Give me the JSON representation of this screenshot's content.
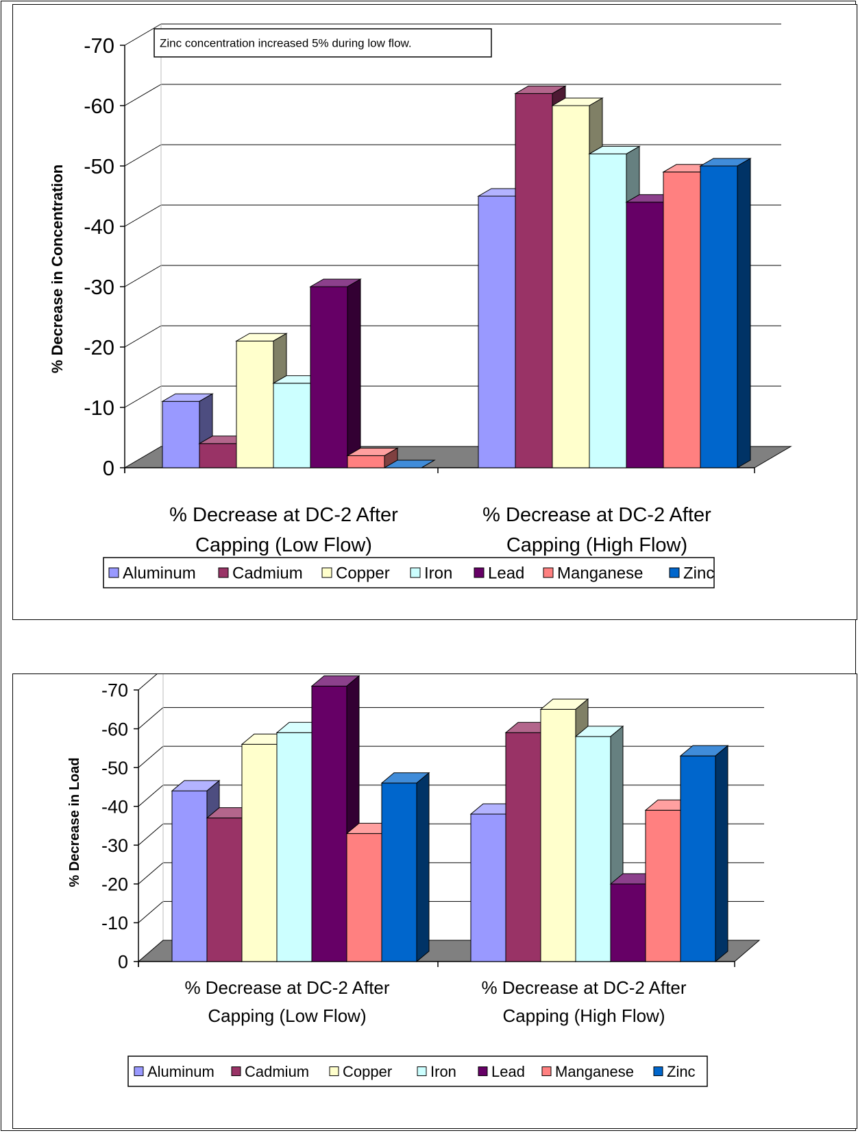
{
  "colors": {
    "Aluminum": "#9999ff",
    "Cadmium": "#993366",
    "Copper": "#ffffcc",
    "Iron": "#ccffff",
    "Lead": "#660066",
    "Manganese": "#ff8080",
    "Zinc": "#0066cc",
    "floor": "#808080",
    "gridline": "#000000"
  },
  "chart_data": [
    {
      "type": "bar",
      "style": "3d-clustered-column",
      "ylabel": "% Decrease in Concentration",
      "xlabel": "",
      "yticks": [
        "0",
        "-10",
        "-20",
        "-30",
        "-40",
        "-50",
        "-60",
        "-70"
      ],
      "ylim": [
        0,
        -70
      ],
      "grid": true,
      "legend_position": "bottom",
      "annotation": "Zinc concentration increased 5% during low flow.",
      "categories": [
        "% Decrease at DC-2 After Capping (Low Flow)",
        "% Decrease at DC-2 After Capping (High Flow)"
      ],
      "category_lines": [
        [
          "% Decrease at DC-2 After",
          "Capping (Low Flow)"
        ],
        [
          "% Decrease at DC-2 After",
          "Capping (High Flow)"
        ]
      ],
      "series": [
        {
          "name": "Aluminum",
          "values": [
            -11,
            -45
          ]
        },
        {
          "name": "Cadmium",
          "values": [
            -4,
            -62
          ]
        },
        {
          "name": "Copper",
          "values": [
            -21,
            -60
          ]
        },
        {
          "name": "Iron",
          "values": [
            -14,
            -52
          ]
        },
        {
          "name": "Lead",
          "values": [
            -30,
            -44
          ]
        },
        {
          "name": "Manganese",
          "values": [
            -2,
            -49
          ]
        },
        {
          "name": "Zinc",
          "values": [
            0,
            -50
          ]
        }
      ]
    },
    {
      "type": "bar",
      "style": "3d-clustered-column",
      "ylabel": "% Decrease in Load",
      "xlabel": "",
      "yticks": [
        "0",
        "-10",
        "-20",
        "-30",
        "-40",
        "-50",
        "-60",
        "-70"
      ],
      "ylim": [
        0,
        -70
      ],
      "grid": true,
      "legend_position": "bottom",
      "annotation": "",
      "categories": [
        "% Decrease at DC-2 After Capping (Low Flow)",
        "% Decrease at DC-2 After Capping (High Flow)"
      ],
      "category_lines": [
        [
          "% Decrease at DC-2 After",
          "Capping (Low Flow)"
        ],
        [
          "% Decrease at DC-2 After",
          "Capping (High Flow)"
        ]
      ],
      "series": [
        {
          "name": "Aluminum",
          "values": [
            -44,
            -38
          ]
        },
        {
          "name": "Cadmium",
          "values": [
            -37,
            -59
          ]
        },
        {
          "name": "Copper",
          "values": [
            -56,
            -65
          ]
        },
        {
          "name": "Iron",
          "values": [
            -59,
            -58
          ]
        },
        {
          "name": "Lead",
          "values": [
            -71,
            -20
          ]
        },
        {
          "name": "Manganese",
          "values": [
            -33,
            -39
          ]
        },
        {
          "name": "Zinc",
          "values": [
            -46,
            -53
          ]
        }
      ]
    }
  ]
}
